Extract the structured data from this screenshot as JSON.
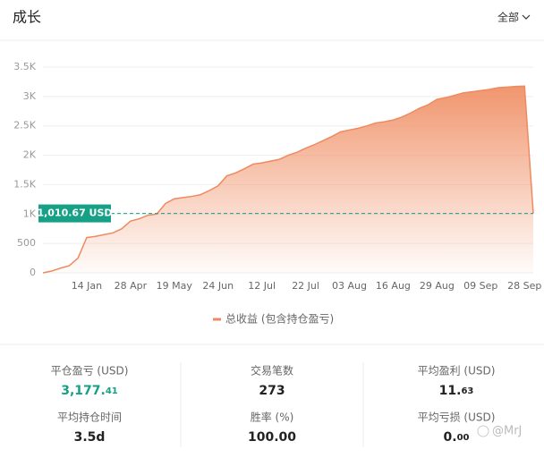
{
  "header": {
    "title": "成长",
    "filter": "全部"
  },
  "chart_data": {
    "type": "area",
    "categories": [
      null,
      null,
      null,
      null,
      null,
      "14 Jan",
      null,
      null,
      null,
      null,
      "28 Apr",
      null,
      null,
      null,
      null,
      "19 May",
      null,
      null,
      null,
      null,
      "24 Jun",
      null,
      null,
      null,
      null,
      "12 Jul",
      null,
      null,
      null,
      null,
      "22 Jul",
      null,
      null,
      null,
      null,
      "03 Aug",
      null,
      null,
      null,
      null,
      "16 Aug",
      null,
      null,
      null,
      null,
      "29 Aug",
      null,
      null,
      null,
      null,
      "09 Sep",
      null,
      null,
      null,
      null,
      "28 Sep",
      null
    ],
    "series": [
      {
        "name": "总收益 (包含持仓盈亏)",
        "color": "#ef8a5e",
        "values": [
          0,
          30,
          80,
          120,
          250,
          600,
          620,
          650,
          680,
          750,
          880,
          920,
          980,
          1000,
          1180,
          1260,
          1280,
          1300,
          1330,
          1400,
          1480,
          1650,
          1700,
          1770,
          1850,
          1870,
          1900,
          1930,
          2000,
          2050,
          2120,
          2180,
          2250,
          2320,
          2400,
          2430,
          2460,
          2500,
          2550,
          2570,
          2600,
          2650,
          2720,
          2800,
          2860,
          2950,
          2980,
          3020,
          3060,
          3080,
          3100,
          3120,
          3150,
          3160,
          3170,
          3177,
          1010.67
        ]
      }
    ],
    "ylim": [
      0,
      3500
    ],
    "yticks": [
      0,
      500,
      {
        "value": 1000,
        "label": "1K"
      },
      {
        "value": 1500,
        "label": "1.5K"
      },
      {
        "value": 2000,
        "label": "2K"
      },
      {
        "value": 2500,
        "label": "2.5K"
      },
      {
        "value": 3000,
        "label": "3K"
      },
      {
        "value": 3500,
        "label": "3.5K"
      }
    ],
    "grid": true,
    "reference": {
      "value": 1010.67,
      "label": "1,010.67 USD",
      "color": "#16a085"
    }
  },
  "stats": [
    {
      "label": "平仓盈亏 (USD)",
      "value": "3,177.",
      "decimals": "41"
    },
    {
      "label": "交易笔数",
      "value": "273"
    },
    {
      "label": "平均盈利 (USD)",
      "value": "11.",
      "decimals": "63"
    },
    {
      "label": "平均持仓时间",
      "value": "3.5d"
    },
    {
      "label": "胜率 (%)",
      "value": "100.00"
    },
    {
      "label": "平均亏损 (USD)",
      "value": "0.",
      "decimals": "00"
    }
  ],
  "watermark": "@MrJ"
}
